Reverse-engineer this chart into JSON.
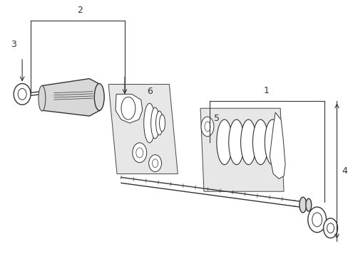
{
  "bg_color": "#ffffff",
  "line_color": "#333333",
  "box_color": "#e8e8e8",
  "figsize": [
    4.89,
    3.6
  ],
  "dpi": 100,
  "label_fs": 9,
  "part_lw": 1.0,
  "thin_lw": 0.7
}
